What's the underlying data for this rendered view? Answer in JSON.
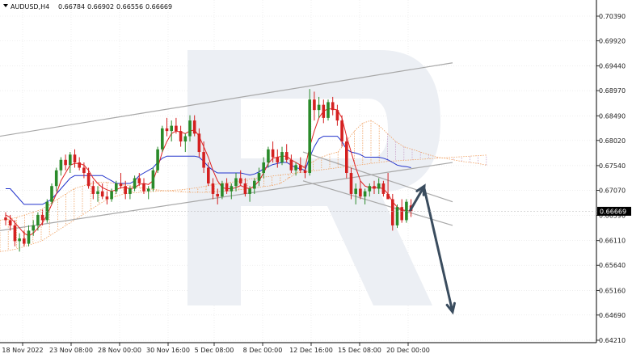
{
  "header": {
    "symbol": "AUDUSD,H4",
    "ohlc": [
      "0.66784",
      "0.66902",
      "0.66556",
      "0.66669"
    ]
  },
  "price_label": "0.66669",
  "colors": {
    "bull": "#2a8a2a",
    "bear": "#d42020",
    "tenkan": "#e02020",
    "kijun": "#2233cc",
    "cloud": "#f0a060",
    "cloud_alt": "#c8a0c8",
    "channel": "#a8a8a8",
    "arrow": "#3a4c5e",
    "grid": "#e4e4e4"
  },
  "chart_data": {
    "type": "candlestick",
    "symbol": "AUDUSD",
    "timeframe": "H4",
    "y_ticks": [
      "0.70390",
      "0.69920",
      "0.69440",
      "0.68970",
      "0.68490",
      "0.68020",
      "0.67540",
      "0.67070",
      "0.66590",
      "0.66110",
      "0.65640",
      "0.65160",
      "0.64690",
      "0.64210"
    ],
    "x_ticks": [
      "18 Nov 2022",
      "23 Nov 08:00",
      "28 Nov 00:00",
      "30 Nov 16:00",
      "5 Dec 08:00",
      "8 Dec 00:00",
      "12 Dec 16:00",
      "15 Dec 08:00",
      "20 Dec 00:00"
    ],
    "ylim": [
      0.6421,
      0.7039
    ],
    "last_price": 0.66669,
    "candles": [
      [
        0.6655,
        0.6665,
        0.664,
        0.665
      ],
      [
        0.665,
        0.666,
        0.663,
        0.664
      ],
      [
        0.664,
        0.665,
        0.66,
        0.661
      ],
      [
        0.661,
        0.6625,
        0.659,
        0.6615
      ],
      [
        0.6615,
        0.663,
        0.66,
        0.6605
      ],
      [
        0.6605,
        0.664,
        0.66,
        0.663
      ],
      [
        0.663,
        0.665,
        0.662,
        0.664
      ],
      [
        0.664,
        0.6665,
        0.663,
        0.666
      ],
      [
        0.666,
        0.667,
        0.664,
        0.665
      ],
      [
        0.665,
        0.669,
        0.6645,
        0.6685
      ],
      [
        0.6685,
        0.672,
        0.668,
        0.6715
      ],
      [
        0.6715,
        0.675,
        0.6705,
        0.6745
      ],
      [
        0.6745,
        0.677,
        0.6735,
        0.6765
      ],
      [
        0.6765,
        0.6775,
        0.6745,
        0.6755
      ],
      [
        0.6755,
        0.678,
        0.674,
        0.6775
      ],
      [
        0.6775,
        0.6785,
        0.675,
        0.676
      ],
      [
        0.676,
        0.677,
        0.6745,
        0.675
      ],
      [
        0.675,
        0.676,
        0.673,
        0.674
      ],
      [
        0.674,
        0.675,
        0.671,
        0.6715
      ],
      [
        0.6715,
        0.6725,
        0.669,
        0.67
      ],
      [
        0.67,
        0.6715,
        0.6685,
        0.6705
      ],
      [
        0.6705,
        0.672,
        0.669,
        0.6695
      ],
      [
        0.6695,
        0.6705,
        0.668,
        0.669
      ],
      [
        0.669,
        0.671,
        0.6685,
        0.6705
      ],
      [
        0.6705,
        0.6725,
        0.67,
        0.672
      ],
      [
        0.672,
        0.674,
        0.671,
        0.6715
      ],
      [
        0.6715,
        0.6725,
        0.669,
        0.67
      ],
      [
        0.67,
        0.6715,
        0.669,
        0.671
      ],
      [
        0.671,
        0.6735,
        0.6705,
        0.673
      ],
      [
        0.673,
        0.674,
        0.6715,
        0.672
      ],
      [
        0.672,
        0.673,
        0.67,
        0.6705
      ],
      [
        0.6705,
        0.6715,
        0.669,
        0.671
      ],
      [
        0.671,
        0.675,
        0.6705,
        0.6745
      ],
      [
        0.6745,
        0.679,
        0.674,
        0.6785
      ],
      [
        0.6785,
        0.683,
        0.678,
        0.6825
      ],
      [
        0.6825,
        0.6845,
        0.681,
        0.682
      ],
      [
        0.682,
        0.684,
        0.68,
        0.683
      ],
      [
        0.683,
        0.6845,
        0.6815,
        0.682
      ],
      [
        0.682,
        0.683,
        0.679,
        0.68
      ],
      [
        0.68,
        0.6815,
        0.678,
        0.681
      ],
      [
        0.681,
        0.685,
        0.68,
        0.684
      ],
      [
        0.684,
        0.685,
        0.681,
        0.6815
      ],
      [
        0.6815,
        0.6825,
        0.677,
        0.678
      ],
      [
        0.678,
        0.68,
        0.674,
        0.675
      ],
      [
        0.675,
        0.676,
        0.6715,
        0.672
      ],
      [
        0.672,
        0.673,
        0.669,
        0.67
      ],
      [
        0.67,
        0.671,
        0.668,
        0.6695
      ],
      [
        0.6695,
        0.6725,
        0.669,
        0.672
      ],
      [
        0.672,
        0.673,
        0.67,
        0.6705
      ],
      [
        0.6705,
        0.672,
        0.669,
        0.6715
      ],
      [
        0.6715,
        0.674,
        0.6705,
        0.673
      ],
      [
        0.673,
        0.6745,
        0.6715,
        0.672
      ],
      [
        0.672,
        0.673,
        0.6695,
        0.67
      ],
      [
        0.67,
        0.6715,
        0.6685,
        0.671
      ],
      [
        0.671,
        0.673,
        0.67,
        0.6725
      ],
      [
        0.6725,
        0.675,
        0.6715,
        0.674
      ],
      [
        0.674,
        0.677,
        0.673,
        0.676
      ],
      [
        0.676,
        0.679,
        0.675,
        0.6785
      ],
      [
        0.6785,
        0.68,
        0.676,
        0.677
      ],
      [
        0.677,
        0.6785,
        0.675,
        0.676
      ],
      [
        0.676,
        0.679,
        0.6755,
        0.678
      ],
      [
        0.678,
        0.6795,
        0.676,
        0.6765
      ],
      [
        0.6765,
        0.6775,
        0.674,
        0.6745
      ],
      [
        0.6745,
        0.676,
        0.6735,
        0.6755
      ],
      [
        0.6755,
        0.677,
        0.674,
        0.6745
      ],
      [
        0.6745,
        0.6755,
        0.673,
        0.674
      ],
      [
        0.674,
        0.69,
        0.6735,
        0.688
      ],
      [
        0.688,
        0.6895,
        0.684,
        0.686
      ],
      [
        0.686,
        0.6885,
        0.6845,
        0.687
      ],
      [
        0.687,
        0.688,
        0.6835,
        0.6845
      ],
      [
        0.6845,
        0.688,
        0.684,
        0.6875
      ],
      [
        0.6875,
        0.6885,
        0.685,
        0.686
      ],
      [
        0.686,
        0.687,
        0.683,
        0.684
      ],
      [
        0.684,
        0.685,
        0.679,
        0.68
      ],
      [
        0.68,
        0.681,
        0.673,
        0.674
      ],
      [
        0.674,
        0.675,
        0.669,
        0.67
      ],
      [
        0.67,
        0.672,
        0.668,
        0.671
      ],
      [
        0.671,
        0.6725,
        0.669,
        0.6695
      ],
      [
        0.6695,
        0.671,
        0.668,
        0.6705
      ],
      [
        0.6705,
        0.672,
        0.6695,
        0.6715
      ],
      [
        0.6715,
        0.6725,
        0.67,
        0.671
      ],
      [
        0.671,
        0.673,
        0.67,
        0.672
      ],
      [
        0.672,
        0.6725,
        0.6695,
        0.67
      ],
      [
        0.67,
        0.674,
        0.669,
        0.669
      ],
      [
        0.669,
        0.67,
        0.663,
        0.664
      ],
      [
        0.664,
        0.668,
        0.6635,
        0.6675
      ],
      [
        0.6675,
        0.669,
        0.6645,
        0.665
      ],
      [
        0.665,
        0.669,
        0.6645,
        0.6685
      ],
      [
        0.6678,
        0.669,
        0.6656,
        0.6667
      ]
    ],
    "cloud_span_a": [
      0.665,
      0.6652,
      0.6655,
      0.666,
      0.6665,
      0.667,
      0.668,
      0.669,
      0.67,
      0.671,
      0.6715,
      0.672,
      0.6722,
      0.6722,
      0.672,
      0.6718,
      0.6715,
      0.6712,
      0.671,
      0.6708,
      0.6706,
      0.6705,
      0.6704,
      0.6703,
      0.6703,
      0.6703,
      0.6704,
      0.6705,
      0.6706,
      0.6708,
      0.671,
      0.6712,
      0.6714,
      0.6716,
      0.672,
      0.673,
      0.674,
      0.6752,
      0.6762,
      0.677,
      0.6776,
      0.678,
      0.68,
      0.682,
      0.6835,
      0.684,
      0.683,
      0.6815,
      0.68,
      0.679,
      0.6785,
      0.678,
      0.6775,
      0.677,
      0.6768,
      0.6765,
      0.6762,
      0.676,
      0.6758,
      0.6755
    ],
    "cloud_span_b": [
      0.659,
      0.6592,
      0.6595,
      0.66,
      0.6605,
      0.661,
      0.662,
      0.663,
      0.664,
      0.665,
      0.666,
      0.667,
      0.668,
      0.669,
      0.6695,
      0.67,
      0.6702,
      0.6703,
      0.6704,
      0.6705,
      0.6706,
      0.6707,
      0.6708,
      0.671,
      0.6712,
      0.6715,
      0.6718,
      0.672,
      0.6722,
      0.6725,
      0.6728,
      0.673,
      0.6732,
      0.6734,
      0.6736,
      0.6738,
      0.674,
      0.6742,
      0.6744,
      0.6746,
      0.6748,
      0.675,
      0.6752,
      0.6754,
      0.6756,
      0.6758,
      0.676,
      0.6762,
      0.6763,
      0.6764,
      0.6765,
      0.6766,
      0.6767,
      0.6768,
      0.6769,
      0.677,
      0.6771,
      0.6772,
      0.6773,
      0.6774
    ],
    "tenkan": [
      0.666,
      0.6655,
      0.6645,
      0.6635,
      0.6625,
      0.662,
      0.6625,
      0.6635,
      0.6645,
      0.666,
      0.668,
      0.67,
      0.6725,
      0.674,
      0.6755,
      0.6758,
      0.6758,
      0.6755,
      0.6745,
      0.673,
      0.672,
      0.6712,
      0.6708,
      0.6705,
      0.6708,
      0.6712,
      0.6712,
      0.671,
      0.6712,
      0.6718,
      0.672,
      0.6718,
      0.6725,
      0.675,
      0.678,
      0.68,
      0.6815,
      0.682,
      0.6818,
      0.6815,
      0.682,
      0.6822,
      0.681,
      0.679,
      0.677,
      0.6745,
      0.6725,
      0.6712,
      0.671,
      0.671,
      0.6712,
      0.6716,
      0.6712,
      0.671,
      0.6715,
      0.6725,
      0.674,
      0.6758,
      0.6768,
      0.677,
      0.6772,
      0.6772,
      0.6765,
      0.676,
      0.6755,
      0.675,
      0.679,
      0.682,
      0.6845,
      0.6858,
      0.6862,
      0.6862,
      0.686,
      0.6845,
      0.681,
      0.678,
      0.675,
      0.6725,
      0.6715,
      0.6712,
      0.6712,
      0.6712,
      0.671,
      0.67,
      0.6685,
      0.6675,
      0.667,
      0.6668,
      0.6667
    ],
    "kijun": [
      0.671,
      0.671,
      0.67,
      0.669,
      0.668,
      0.668,
      0.668,
      0.668,
      0.668,
      0.6685,
      0.669,
      0.67,
      0.671,
      0.672,
      0.673,
      0.6735,
      0.6735,
      0.6735,
      0.6735,
      0.6735,
      0.6735,
      0.6735,
      0.673,
      0.6725,
      0.672,
      0.672,
      0.672,
      0.672,
      0.6725,
      0.6735,
      0.674,
      0.6745,
      0.675,
      0.676,
      0.6768,
      0.6772,
      0.6772,
      0.6772,
      0.6772,
      0.6772,
      0.6772,
      0.6772,
      0.677,
      0.6762,
      0.6752,
      0.6745,
      0.674,
      0.674,
      0.674,
      0.674,
      0.674,
      0.674,
      0.6738,
      0.6736,
      0.6738,
      0.6742,
      0.6748,
      0.6752,
      0.6756,
      0.6758,
      0.676,
      0.676,
      0.6755,
      0.675,
      0.6748,
      0.6745,
      0.677,
      0.679,
      0.6805,
      0.681,
      0.681,
      0.681,
      0.681,
      0.68,
      0.6785,
      0.678,
      0.6778,
      0.6775,
      0.677,
      0.677,
      0.677,
      0.677,
      0.6768,
      0.6765,
      0.676,
      0.6755,
      0.6753,
      0.6752,
      0.675
    ],
    "channel_lines": [
      {
        "from": [
          "18 Nov 2022",
          0.681
        ],
        "to": [
          "22 Dec",
          0.695
        ]
      },
      {
        "from": [
          "18 Nov 2022",
          0.663
        ],
        "to": [
          "22 Dec",
          0.676
        ]
      },
      {
        "from": [
          "14 Dec",
          0.6725
        ],
        "to": [
          "22 Dec",
          0.664
        ]
      },
      {
        "from": [
          "14 Dec",
          0.678
        ],
        "to": [
          "22 Dec",
          0.6685
        ]
      }
    ],
    "forecast_arrows": [
      {
        "from": [
          "20 Dec",
          0.6667
        ],
        "to": [
          "21 Dec",
          0.6715
        ]
      },
      {
        "from": [
          "21 Dec",
          0.671
        ],
        "to": [
          "22 Dec",
          0.6475
        ]
      }
    ]
  }
}
